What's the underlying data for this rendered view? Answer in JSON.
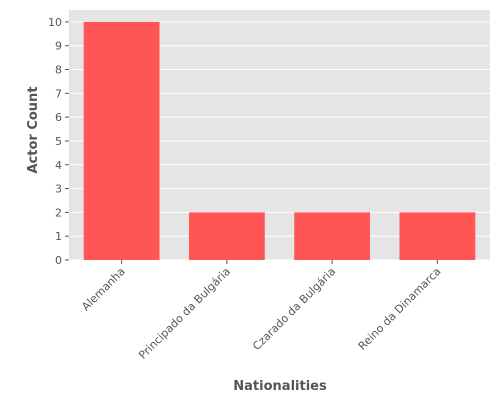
{
  "chart_data": {
    "type": "bar",
    "categories": [
      "Alemanha",
      "Principado da Bulgária",
      "Czarado da Bulgária",
      "Reino da Dinamarca"
    ],
    "values": [
      10,
      2,
      2,
      2
    ],
    "xlabel": "Nationalities",
    "ylabel": "Actor Count",
    "ylim": [
      0,
      10.5
    ],
    "yticks": [
      0,
      1,
      2,
      3,
      4,
      5,
      6,
      7,
      8,
      9,
      10
    ],
    "grid": true,
    "bar_color": "#ff5555",
    "background_color": "#e5e5e5",
    "grid_color": "#ffffff"
  }
}
